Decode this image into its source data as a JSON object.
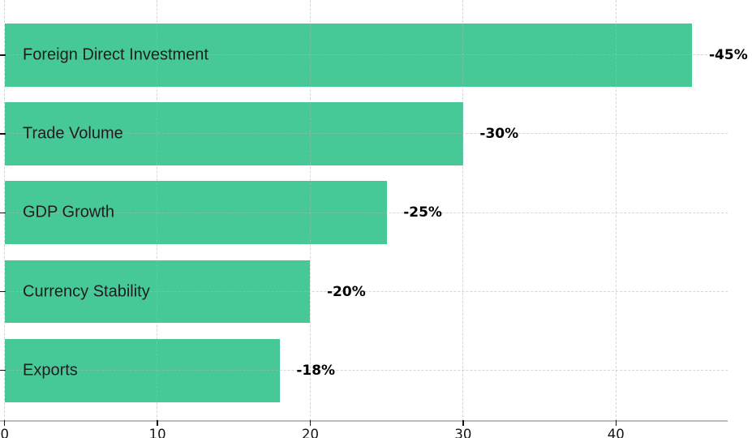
{
  "chart_data": {
    "type": "bar",
    "orientation": "horizontal",
    "title": "",
    "xlabel": "",
    "ylabel": "",
    "categories": [
      "Foreign Direct Investment",
      "Trade Volume",
      "GDP Growth",
      "Currency Stability",
      "Exports"
    ],
    "values": [
      45,
      30,
      25,
      20,
      18
    ],
    "value_labels": [
      "-45%",
      "-30%",
      "-25%",
      "-20%",
      "-18%"
    ],
    "x_ticks": [
      0,
      10,
      20,
      30,
      40
    ],
    "x_tick_labels": [
      "0",
      "10",
      "20",
      "30",
      "40"
    ],
    "xlim": [
      0,
      47.3
    ],
    "grid": true,
    "legend": false,
    "bar_color": "#46c996",
    "grid_color": "#d8d8d8",
    "axis_line_color": "#bdbdbd",
    "label_color": "#1e1e1e",
    "value_label_color": "#000000"
  }
}
